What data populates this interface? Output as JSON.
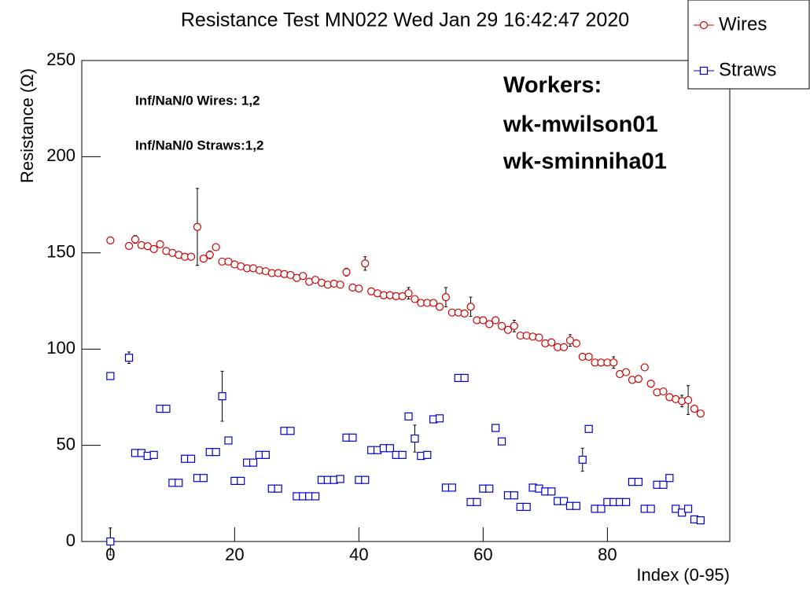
{
  "chart_data": {
    "type": "scatter",
    "title": "Resistance Test MN022 Wed Jan 29 16:42:47 2020",
    "x_label": "Index (0-95)",
    "y_label": "Resistance (Ω)",
    "annotations": [
      "Inf/NaN/0 Wires: 1,2",
      "Inf/NaN/0 Straws:1,2"
    ],
    "workers": [
      "Workers:",
      "wk-mwilson01",
      "wk-sminniha01"
    ],
    "xlim": [
      -4.6,
      99.7
    ],
    "ylim": [
      0,
      250
    ],
    "xticks": [
      0,
      20,
      40,
      60,
      80
    ],
    "yticks": [
      0,
      50,
      100,
      150,
      200,
      250
    ],
    "legend": "top-right",
    "series": [
      {
        "name": "Wires",
        "color": "#cc0000",
        "marker": "circle",
        "x": [
          0,
          3,
          4,
          5,
          6,
          7,
          8,
          9,
          10,
          11,
          12,
          13,
          14,
          15,
          16,
          17,
          18,
          19,
          20,
          21,
          22,
          23,
          24,
          25,
          26,
          27,
          28,
          29,
          30,
          31,
          32,
          33,
          34,
          35,
          36,
          37,
          38,
          39,
          40,
          41,
          42,
          43,
          44,
          45,
          46,
          47,
          48,
          49,
          50,
          51,
          52,
          53,
          54,
          55,
          56,
          57,
          58,
          59,
          60,
          61,
          62,
          63,
          64,
          65,
          66,
          67,
          68,
          69,
          70,
          71,
          72,
          73,
          74,
          75,
          76,
          77,
          78,
          79,
          80,
          81,
          82,
          83,
          84,
          85,
          86,
          87,
          88,
          89,
          90,
          91,
          92,
          93,
          94,
          95
        ],
        "values": [
          156.5,
          153.6,
          157,
          154,
          153.5,
          152,
          154.5,
          151,
          150,
          149,
          148,
          148,
          163.5,
          147,
          149,
          153,
          145.5,
          145.5,
          144,
          143,
          142,
          142,
          141,
          140.5,
          139.5,
          139.5,
          139,
          138.5,
          137,
          138,
          135,
          136,
          134.5,
          133.5,
          134,
          133.5,
          140,
          132,
          131.5,
          144.5,
          130,
          129,
          128,
          128,
          127.5,
          127.5,
          129,
          126,
          124,
          124,
          124,
          122,
          127,
          119,
          119,
          118.5,
          122,
          115,
          115,
          113,
          115,
          112,
          110,
          112,
          107,
          107,
          106.5,
          106,
          103,
          103.5,
          101,
          101,
          104.5,
          103,
          96,
          96,
          93,
          93,
          93,
          93,
          87,
          88,
          84,
          84.5,
          90.5,
          82,
          77.5,
          78,
          75,
          74,
          73,
          73.5,
          69,
          66.5
        ],
        "errors": [
          1.5,
          null,
          2,
          null,
          null,
          null,
          null,
          null,
          null,
          null,
          null,
          null,
          20,
          null,
          2,
          null,
          null,
          null,
          null,
          null,
          null,
          null,
          null,
          null,
          null,
          null,
          null,
          null,
          null,
          null,
          null,
          null,
          null,
          null,
          null,
          null,
          2,
          null,
          null,
          3.5,
          null,
          null,
          null,
          null,
          null,
          null,
          3,
          null,
          null,
          null,
          null,
          null,
          5,
          null,
          null,
          null,
          5,
          null,
          null,
          null,
          null,
          null,
          null,
          3,
          null,
          null,
          null,
          null,
          null,
          null,
          null,
          null,
          3,
          null,
          null,
          null,
          null,
          null,
          null,
          3,
          null,
          null,
          null,
          null,
          null,
          null,
          null,
          null,
          null,
          null,
          3,
          7.5,
          null,
          null
        ]
      },
      {
        "name": "Straws",
        "color": "#0000cc",
        "marker": "square",
        "x": [
          0,
          0,
          3,
          4,
          5,
          6,
          7,
          8,
          9,
          10,
          11,
          12,
          13,
          14,
          15,
          16,
          17,
          18,
          19,
          20,
          21,
          22,
          23,
          24,
          25,
          26,
          27,
          28,
          29,
          30,
          31,
          32,
          33,
          34,
          35,
          36,
          37,
          38,
          39,
          40,
          41,
          42,
          43,
          44,
          45,
          46,
          47,
          48,
          49,
          50,
          51,
          52,
          53,
          54,
          55,
          56,
          57,
          58,
          59,
          60,
          61,
          62,
          63,
          64,
          65,
          66,
          67,
          68,
          69,
          70,
          71,
          72,
          73,
          74,
          75,
          76,
          77,
          78,
          79,
          80,
          81,
          82,
          83,
          84,
          85,
          86,
          87,
          88,
          89,
          90,
          91,
          92,
          93,
          94,
          95
        ],
        "values": [
          86,
          0,
          95.5,
          46,
          46,
          44.5,
          45,
          69,
          69,
          30.5,
          30.5,
          43,
          43,
          33,
          33,
          46.5,
          46.5,
          75.5,
          52.5,
          31.5,
          31.5,
          41,
          41,
          45,
          45,
          27.5,
          27.5,
          57.5,
          57.5,
          23.5,
          23.5,
          23.5,
          23.5,
          32,
          32,
          32,
          32.5,
          54,
          54,
          32,
          32,
          47.5,
          47.5,
          48.5,
          48.5,
          45,
          45,
          65,
          53.5,
          44.5,
          45,
          63.5,
          64,
          28,
          28,
          85,
          85,
          20.5,
          20.5,
          27.5,
          27.5,
          59,
          52,
          24,
          24,
          18,
          18,
          28,
          27.5,
          26,
          26,
          21,
          21,
          18.5,
          18.5,
          42.5,
          58.5,
          17,
          17,
          20.5,
          20.5,
          20.5,
          20.5,
          31,
          31,
          17,
          17,
          29.5,
          29.5,
          33,
          17,
          15,
          17,
          11.5,
          11
        ],
        "errors": [
          null,
          7,
          3,
          null,
          null,
          null,
          null,
          null,
          null,
          null,
          null,
          null,
          null,
          null,
          null,
          null,
          null,
          13,
          null,
          null,
          null,
          null,
          null,
          null,
          null,
          null,
          null,
          null,
          null,
          null,
          null,
          null,
          null,
          null,
          null,
          null,
          null,
          null,
          null,
          null,
          null,
          null,
          null,
          null,
          null,
          null,
          null,
          null,
          7,
          null,
          null,
          null,
          null,
          null,
          null,
          null,
          null,
          null,
          null,
          null,
          null,
          null,
          null,
          null,
          null,
          null,
          null,
          null,
          null,
          null,
          null,
          null,
          null,
          null,
          null,
          6,
          null,
          null,
          null,
          null,
          null,
          null,
          null,
          null,
          null,
          null,
          null,
          null,
          null,
          null,
          null,
          null,
          null,
          null,
          null
        ]
      }
    ]
  }
}
